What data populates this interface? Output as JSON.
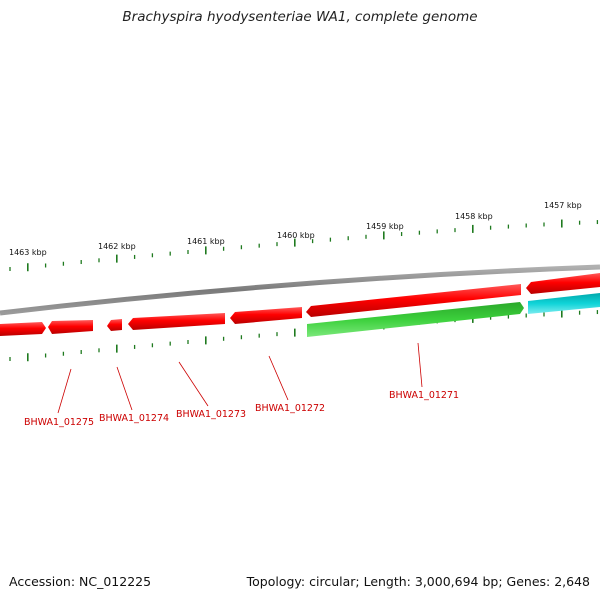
{
  "title": "Brachyspira hyodysenteriae WA1, complete genome",
  "footer": {
    "accession": "Accession: NC_012225",
    "summary": "Topology: circular; Length: 3,000,694 bp; Genes: 2,648"
  },
  "colors": {
    "backbone": "#808080",
    "forward_gene": "#ff0000",
    "reverse_gene_green": "#2ecc2e",
    "reverse_gene_cyan": "#00c8cc",
    "tick": "#1f7a1f",
    "label": "#cc0000"
  },
  "scale": {
    "unit": "kbp",
    "ticks": [
      {
        "label": "1463 kbp"
      },
      {
        "label": "1462 kbp"
      },
      {
        "label": "1461 kbp"
      },
      {
        "label": "1460 kbp"
      },
      {
        "label": "1459 kbp"
      },
      {
        "label": "1458 kbp"
      },
      {
        "label": "1457 kbp"
      }
    ]
  },
  "genes": [
    {
      "name": "BHWA1_01275",
      "strand": "+",
      "color": "red"
    },
    {
      "name": "BHWA1_01274",
      "strand": "+",
      "color": "red"
    },
    {
      "name": "BHWA1_01273",
      "strand": "+",
      "color": "red"
    },
    {
      "name": "BHWA1_01272",
      "strand": "+",
      "color": "red"
    },
    {
      "name": "BHWA1_01271",
      "strand": "-",
      "color": "green"
    }
  ]
}
